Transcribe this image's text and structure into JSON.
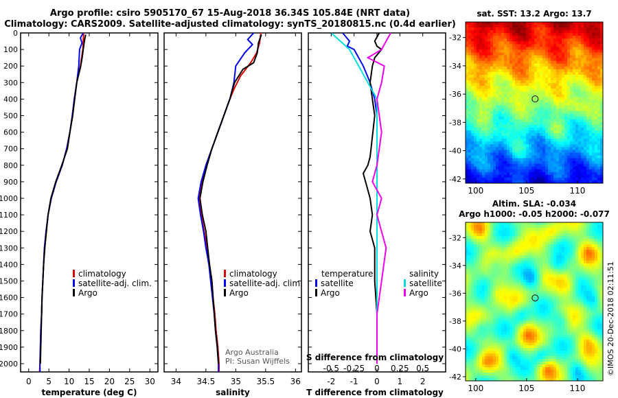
{
  "header": {
    "title_line1": "Argo profile: csiro 5905170_67 15-Aug-2018 36.34S 105.84E (NRT data)",
    "title_line2": "Climatology: CARS2009. Satellite-adjusted climatology: synTS_20180815.nc (0.4d earlier)"
  },
  "colors": {
    "climatology": "#dd0000",
    "satellite": "#0000ee",
    "argo": "#000000",
    "satellite_s": "#00dddd",
    "argo_s": "#ee00ee"
  },
  "depth_axis": {
    "range": [
      0,
      2050
    ],
    "ticks": [
      0,
      100,
      200,
      300,
      400,
      500,
      600,
      700,
      800,
      900,
      1000,
      1100,
      1200,
      1300,
      1400,
      1500,
      1600,
      1700,
      1800,
      1900,
      2000
    ]
  },
  "chart_data": [
    {
      "type": "line",
      "id": "temperature",
      "xlabel": "temperature (deg C)",
      "ylabel": "depth",
      "xlim": [
        -2,
        32
      ],
      "ylim": [
        2050,
        0
      ],
      "xticks": [
        0,
        5,
        10,
        15,
        20,
        25,
        30
      ],
      "legend": [
        "climatology",
        "satellite-adj. clim.",
        "Argo"
      ],
      "series": [
        {
          "name": "climatology",
          "color": "#dd0000",
          "points": [
            [
              13.6,
              0
            ],
            [
              13.4,
              100
            ],
            [
              12.8,
              200
            ],
            [
              11.9,
              300
            ],
            [
              11.3,
              400
            ],
            [
              10.8,
              500
            ],
            [
              10.2,
              600
            ],
            [
              9.4,
              700
            ],
            [
              8.3,
              800
            ],
            [
              6.8,
              900
            ],
            [
              5.6,
              1000
            ],
            [
              4.8,
              1100
            ],
            [
              4.3,
              1200
            ],
            [
              3.9,
              1300
            ],
            [
              3.7,
              1400
            ],
            [
              3.5,
              1500
            ],
            [
              3.3,
              1600
            ],
            [
              3.2,
              1700
            ],
            [
              3.0,
              1800
            ],
            [
              2.9,
              1900
            ],
            [
              2.8,
              2000
            ],
            [
              2.7,
              2050
            ]
          ]
        },
        {
          "name": "satellite-adj. clim.",
          "color": "#0000ee",
          "points": [
            [
              13.5,
              0
            ],
            [
              12.8,
              30
            ],
            [
              13.2,
              60
            ],
            [
              12.6,
              100
            ],
            [
              12.4,
              200
            ],
            [
              11.9,
              300
            ],
            [
              11.3,
              400
            ],
            [
              10.8,
              500
            ],
            [
              10.2,
              600
            ],
            [
              9.4,
              700
            ],
            [
              8.3,
              800
            ],
            [
              6.8,
              900
            ],
            [
              5.6,
              1000
            ],
            [
              4.8,
              1100
            ],
            [
              4.3,
              1200
            ],
            [
              3.9,
              1300
            ],
            [
              3.7,
              1400
            ],
            [
              3.5,
              1500
            ],
            [
              3.3,
              1600
            ],
            [
              3.2,
              1700
            ],
            [
              3.0,
              1800
            ],
            [
              2.9,
              1900
            ],
            [
              2.8,
              2000
            ],
            [
              2.8,
              2050
            ]
          ]
        },
        {
          "name": "Argo",
          "color": "#000000",
          "points": [
            [
              14.1,
              10
            ],
            [
              13.8,
              50
            ],
            [
              13.5,
              100
            ],
            [
              13.3,
              140
            ],
            [
              12.9,
              200
            ],
            [
              12.3,
              260
            ],
            [
              11.9,
              300
            ],
            [
              11.4,
              400
            ],
            [
              10.9,
              500
            ],
            [
              10.2,
              600
            ],
            [
              9.6,
              700
            ],
            [
              8.2,
              800
            ],
            [
              6.7,
              900
            ],
            [
              5.5,
              1000
            ],
            [
              4.8,
              1100
            ],
            [
              4.4,
              1200
            ],
            [
              4.0,
              1300
            ],
            [
              3.7,
              1400
            ],
            [
              3.5,
              1500
            ],
            [
              3.3,
              1600
            ],
            [
              3.2,
              1700
            ],
            [
              3.1,
              1800
            ],
            [
              3.0,
              1900
            ],
            [
              2.9,
              2000
            ]
          ]
        }
      ]
    },
    {
      "type": "line",
      "id": "salinity",
      "xlabel": "salinity",
      "ylabel": "depth",
      "xlim": [
        33.8,
        36.1
      ],
      "ylim": [
        2050,
        0
      ],
      "xticks": [
        34,
        34.5,
        35,
        35.5,
        36
      ],
      "legend": [
        "climatology",
        "satellite-adj. clim.",
        "Argo"
      ],
      "series": [
        {
          "name": "climatology",
          "color": "#dd0000",
          "points": [
            [
              35.42,
              0
            ],
            [
              35.4,
              60
            ],
            [
              35.35,
              120
            ],
            [
              35.25,
              180
            ],
            [
              35.08,
              260
            ],
            [
              34.97,
              340
            ],
            [
              34.88,
              420
            ],
            [
              34.78,
              520
            ],
            [
              34.68,
              620
            ],
            [
              34.58,
              720
            ],
            [
              34.5,
              800
            ],
            [
              34.43,
              900
            ],
            [
              34.38,
              1000
            ],
            [
              34.42,
              1100
            ],
            [
              34.47,
              1200
            ],
            [
              34.52,
              1300
            ],
            [
              34.56,
              1400
            ],
            [
              34.6,
              1500
            ],
            [
              34.62,
              1600
            ],
            [
              34.65,
              1700
            ],
            [
              34.67,
              1800
            ],
            [
              34.7,
              1900
            ],
            [
              34.72,
              2000
            ],
            [
              34.72,
              2050
            ]
          ]
        },
        {
          "name": "satellite-adj. clim.",
          "color": "#0000ee",
          "points": [
            [
              35.3,
              0
            ],
            [
              35.2,
              40
            ],
            [
              35.28,
              70
            ],
            [
              35.15,
              120
            ],
            [
              35.0,
              200
            ],
            [
              34.97,
              300
            ],
            [
              34.9,
              400
            ],
            [
              34.8,
              500
            ],
            [
              34.7,
              600
            ],
            [
              34.6,
              700
            ],
            [
              34.5,
              800
            ],
            [
              34.42,
              900
            ],
            [
              34.37,
              1000
            ],
            [
              34.41,
              1100
            ],
            [
              34.46,
              1200
            ],
            [
              34.5,
              1300
            ],
            [
              34.55,
              1400
            ],
            [
              34.58,
              1500
            ],
            [
              34.61,
              1600
            ],
            [
              34.64,
              1700
            ],
            [
              34.66,
              1800
            ],
            [
              34.69,
              1900
            ],
            [
              34.71,
              2000
            ],
            [
              34.71,
              2050
            ]
          ]
        },
        {
          "name": "Argo",
          "color": "#000000",
          "points": [
            [
              35.43,
              10
            ],
            [
              35.38,
              60
            ],
            [
              35.36,
              120
            ],
            [
              35.3,
              180
            ],
            [
              35.12,
              220
            ],
            [
              34.98,
              300
            ],
            [
              34.9,
              400
            ],
            [
              34.8,
              500
            ],
            [
              34.7,
              600
            ],
            [
              34.6,
              700
            ],
            [
              34.52,
              800
            ],
            [
              34.45,
              900
            ],
            [
              34.4,
              1000
            ],
            [
              34.44,
              1100
            ],
            [
              34.5,
              1200
            ],
            [
              34.53,
              1300
            ],
            [
              34.56,
              1400
            ],
            [
              34.6,
              1500
            ],
            [
              34.62,
              1600
            ],
            [
              34.64,
              1700
            ],
            [
              34.66,
              1800
            ],
            [
              34.69,
              1900
            ],
            [
              34.71,
              2000
            ]
          ]
        }
      ]
    },
    {
      "type": "line",
      "id": "difference",
      "xlabel": "T difference from climatology",
      "xlabel_top": "S difference from climatology",
      "ylabel": "depth",
      "xlim": [
        -3,
        3
      ],
      "ylim": [
        2050,
        0
      ],
      "xticks": [
        -2,
        -1,
        0,
        1,
        2
      ],
      "xticks_s_values": [
        -0.5,
        -0.25,
        0,
        0.25,
        0.5
      ],
      "xticks_s_labels": [
        "-0.5",
        "-0.25",
        "0",
        "0.25",
        "0.5"
      ],
      "legend_left_title": "temperature",
      "legend_right_title": "salinity",
      "legend": [
        "satellite",
        "Argo",
        "satellite",
        "Argo"
      ],
      "series": [
        {
          "name": "temperature satellite",
          "color": "#0000ee",
          "points": [
            [
              -1.5,
              0
            ],
            [
              -1.2,
              50
            ],
            [
              -1.3,
              80
            ],
            [
              -1.0,
              100
            ],
            [
              -0.8,
              150
            ],
            [
              -0.6,
              200
            ],
            [
              -0.3,
              300
            ],
            [
              -0.1,
              400
            ],
            [
              0,
              500
            ],
            [
              0,
              700
            ],
            [
              0,
              900
            ],
            [
              0,
              1100
            ],
            [
              0,
              1300
            ],
            [
              0,
              1500
            ],
            [
              0,
              1700
            ],
            [
              0,
              1900
            ],
            [
              0,
              2000
            ]
          ]
        },
        {
          "name": "temperature Argo",
          "color": "#000000",
          "points": [
            [
              0.1,
              0
            ],
            [
              -0.1,
              50
            ],
            [
              0.0,
              80
            ],
            [
              0.2,
              100
            ],
            [
              -0.1,
              150
            ],
            [
              -0.2,
              200
            ],
            [
              -0.3,
              300
            ],
            [
              -0.2,
              400
            ],
            [
              -0.1,
              500
            ],
            [
              -0.3,
              750
            ],
            [
              -0.4,
              800
            ],
            [
              -0.6,
              850
            ],
            [
              -0.4,
              950
            ],
            [
              -0.3,
              1000
            ],
            [
              -0.2,
              1100
            ],
            [
              -0.3,
              1200
            ],
            [
              -0.1,
              1300
            ],
            [
              -0.1,
              1500
            ],
            [
              0,
              1700
            ],
            [
              0,
              1900
            ],
            [
              0,
              2000
            ]
          ]
        },
        {
          "name": "salinity satellite",
          "color": "#00dddd",
          "points": [
            [
              -0.5,
              0
            ],
            [
              -0.4,
              50
            ],
            [
              -0.3,
              100
            ],
            [
              -0.2,
              200
            ],
            [
              -0.1,
              300
            ],
            [
              0,
              400
            ],
            [
              0,
              600
            ],
            [
              0,
              800
            ],
            [
              0,
              1000
            ],
            [
              0,
              1200
            ],
            [
              0,
              1400
            ],
            [
              0,
              1600
            ],
            [
              0,
              1800
            ],
            [
              0,
              2000
            ]
          ]
        },
        {
          "name": "salinity Argo",
          "color": "#ee00ee",
          "points": [
            [
              0.15,
              0
            ],
            [
              0.1,
              50
            ],
            [
              0.05,
              100
            ],
            [
              -0.1,
              150
            ],
            [
              0.08,
              200
            ],
            [
              0.05,
              300
            ],
            [
              0.0,
              400
            ],
            [
              0.05,
              600
            ],
            [
              0.0,
              800
            ],
            [
              -0.05,
              900
            ],
            [
              0.05,
              1000
            ],
            [
              0.0,
              1100
            ],
            [
              0.1,
              1300
            ],
            [
              0.05,
              1500
            ],
            [
              0.0,
              1700
            ],
            [
              0.0,
              1900
            ],
            [
              0.0,
              2000
            ]
          ]
        }
      ]
    },
    {
      "type": "heatmap",
      "id": "sst-map",
      "title": "sat. SST: 13.2 Argo: 13.7",
      "xlim": [
        99,
        112.5
      ],
      "ylim": [
        -42.3,
        -30.9
      ],
      "xticks": [
        100,
        105,
        110
      ],
      "yticks": [
        -32,
        -34,
        -36,
        -38,
        -40,
        -42
      ],
      "marker": {
        "lon": 105.84,
        "lat": -36.34
      }
    },
    {
      "type": "heatmap",
      "id": "sla-map",
      "title_line1": "Altim. SLA: -0.034",
      "title_line2": "Argo h1000: -0.05 h2000: -0.077",
      "xlim": [
        99,
        112.5
      ],
      "ylim": [
        -42.3,
        -30.9
      ],
      "xticks": [
        100,
        105,
        110
      ],
      "yticks": [
        -32,
        -34,
        -36,
        -38,
        -40,
        -42
      ],
      "marker": {
        "lon": 105.84,
        "lat": -36.34
      }
    }
  ],
  "credits": {
    "argo_line1": "Argo Australia",
    "argo_line2": "PI: Susan Wijffels",
    "imos": "©IMOS 20-Dec-2018 02:11:51"
  }
}
